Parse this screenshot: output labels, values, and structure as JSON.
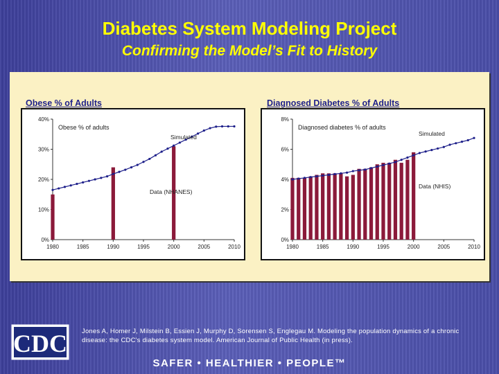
{
  "slide": {
    "title": "Diabetes System Modeling Project",
    "subtitle": "Confirming the Model’s Fit to History",
    "citation": "Jones A, Homer J, Milstein B, Essien J, Murphy D, Sorensen S, Englegau M. Modeling the population dynamics of a chronic disease: the CDC's diabetes system model. American Journal of Public Health (in press).",
    "footer": "SAFER • HEALTHIER • PEOPLE™",
    "logo_text": "CDC"
  },
  "colors": {
    "title": "#ffff00",
    "panel": "#fbf1c4",
    "bar": "#8b1a3a",
    "line": "#1d1f8a",
    "label": "#1d1f8a"
  },
  "chart_data": [
    {
      "type": "bar",
      "label": "Obese % of Adults",
      "inner_title": "Obese % of adults",
      "annotations": [
        "Simulated",
        "Data (NHANES)"
      ],
      "x_ticks": [
        1980,
        1985,
        1990,
        1995,
        2000,
        2005,
        2010
      ],
      "y_ticks": [
        "0%",
        "10%",
        "20%",
        "30%",
        "40%"
      ],
      "ylim": [
        0,
        40
      ],
      "xlim": [
        1980,
        2010
      ],
      "bars": {
        "name": "Data (NHANES)",
        "x": [
          1980,
          1990,
          2000
        ],
        "values": [
          15,
          24,
          31
        ]
      },
      "line": {
        "name": "Simulated",
        "x": [
          1980,
          1981,
          1982,
          1983,
          1984,
          1985,
          1986,
          1987,
          1988,
          1989,
          1990,
          1991,
          1992,
          1993,
          1994,
          1995,
          1996,
          1997,
          1998,
          1999,
          2000,
          2001,
          2002,
          2003,
          2004,
          2005,
          2006,
          2007,
          2008,
          2009,
          2010
        ],
        "values": [
          16.5,
          17.0,
          17.5,
          18.0,
          18.5,
          19.0,
          19.5,
          20.0,
          20.5,
          21.0,
          21.8,
          22.5,
          23.2,
          24.0,
          24.8,
          25.8,
          26.8,
          28.0,
          29.2,
          30.2,
          31.2,
          32.2,
          33.2,
          34.2,
          35.2,
          36.2,
          37.0,
          37.5,
          37.6,
          37.6,
          37.6
        ]
      }
    },
    {
      "type": "bar",
      "label": "Diagnosed Diabetes % of Adults",
      "inner_title": "Diagnosed diabetes % of adults",
      "annotations": [
        "Simulated",
        "Data (NHIS)"
      ],
      "x_ticks": [
        1980,
        1985,
        1990,
        1995,
        2000,
        2005,
        2010
      ],
      "y_ticks": [
        "0%",
        "2%",
        "4%",
        "6%",
        "8%"
      ],
      "ylim": [
        0,
        8
      ],
      "xlim": [
        1980,
        2010
      ],
      "bars": {
        "name": "Data (NHIS)",
        "x": [
          1980,
          1981,
          1982,
          1983,
          1984,
          1985,
          1986,
          1987,
          1988,
          1989,
          1990,
          1991,
          1992,
          1993,
          1994,
          1995,
          1996,
          1997,
          1998,
          1999,
          2000
        ],
        "values": [
          4.1,
          4.1,
          4.1,
          4.2,
          4.3,
          4.4,
          4.4,
          4.4,
          4.4,
          4.2,
          4.3,
          4.7,
          4.7,
          4.8,
          5.0,
          5.1,
          5.1,
          5.3,
          5.1,
          5.3,
          5.8
        ]
      },
      "line": {
        "name": "Simulated",
        "x": [
          1980,
          1981,
          1982,
          1983,
          1984,
          1985,
          1986,
          1987,
          1988,
          1989,
          1990,
          1991,
          1992,
          1993,
          1994,
          1995,
          1996,
          1997,
          1998,
          1999,
          2000,
          2001,
          2002,
          2003,
          2004,
          2005,
          2006,
          2007,
          2008,
          2009,
          2010
        ],
        "values": [
          4.0,
          4.05,
          4.1,
          4.15,
          4.2,
          4.25,
          4.3,
          4.35,
          4.4,
          4.45,
          4.55,
          4.6,
          4.65,
          4.75,
          4.85,
          4.95,
          5.05,
          5.15,
          5.3,
          5.45,
          5.6,
          5.75,
          5.85,
          5.95,
          6.05,
          6.15,
          6.3,
          6.4,
          6.5,
          6.6,
          6.75
        ]
      }
    }
  ]
}
